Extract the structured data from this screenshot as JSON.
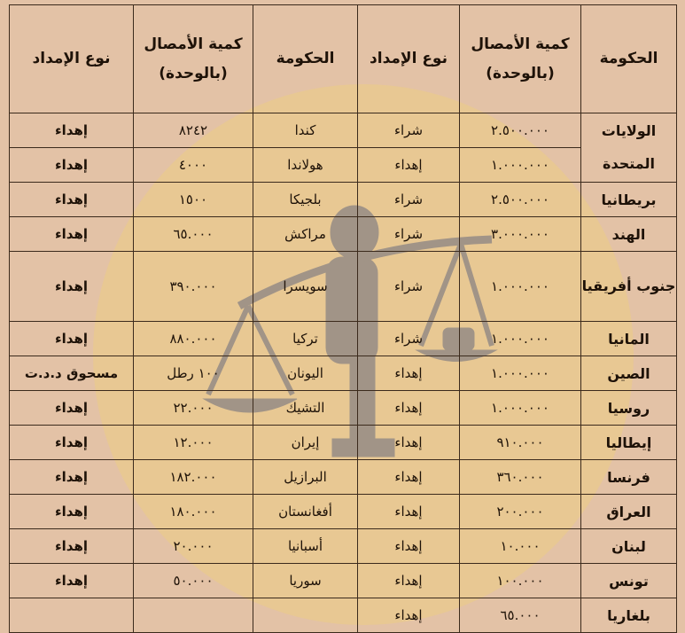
{
  "headers": [
    "الحكومة",
    "كمية الأمصال (بالوحدة)",
    "نوع الإمداد",
    "الحكومة",
    "كمية الأمصال (بالوحدة)",
    "نوع الإمداد"
  ],
  "colors": {
    "background": "#e3c2a6",
    "watermark_circle": "#e9c98c",
    "watermark_figure": "#9a8f86",
    "border": "#3b2a1c"
  },
  "rows": [
    {
      "right": {
        "gov": "الولايات المتحدة",
        "qty": "٢.٥٠٠.٠٠٠",
        "type": "شراء"
      },
      "left": {
        "gov": "كندا",
        "qty": "٨٢٤٢",
        "type": "إهداء"
      }
    },
    {
      "right": {
        "gov": null,
        "qty": "١.٠٠٠.٠٠٠",
        "type": "إهداء"
      },
      "left": {
        "gov": "هولاندا",
        "qty": "٤٠٠٠",
        "type": "إهداء"
      }
    },
    {
      "right": {
        "gov": "بريطانيا",
        "qty": "٢.٥٠٠.٠٠٠",
        "type": "شراء"
      },
      "left": {
        "gov": "بلجيكا",
        "qty": "١٥٠٠",
        "type": "إهداء"
      }
    },
    {
      "right": {
        "gov": "الهند",
        "qty": "٣.٠٠٠.٠٠٠",
        "type": "شراء"
      },
      "left": {
        "gov": "مراكش",
        "qty": "٦٥.٠٠٠",
        "type": "إهداء"
      }
    },
    {
      "right": {
        "gov": "جنوب أفريقيا",
        "qty": "١.٠٠٠.٠٠٠",
        "type": "شراء"
      },
      "left": {
        "gov": "سويسرا",
        "qty": "٣٩٠.٠٠٠",
        "type": "إهداء"
      },
      "tall": true
    },
    {
      "right": {
        "gov": "المانيا",
        "qty": "١.٠٠٠.٠٠٠",
        "type": "شراء"
      },
      "left": {
        "gov": "تركيا",
        "qty": "٨٨٠.٠٠٠",
        "type": "إهداء"
      }
    },
    {
      "right": {
        "gov": "الصين",
        "qty": "١.٠٠٠.٠٠٠",
        "type": "إهداء"
      },
      "left": {
        "gov": "اليونان",
        "qty": "١٠٠ رطل",
        "type": "مسحوق د.د.ت"
      }
    },
    {
      "right": {
        "gov": "روسيا",
        "qty": "١.٠٠٠.٠٠٠",
        "type": "إهداء"
      },
      "left": {
        "gov": "التشيك",
        "qty": "٢٢.٠٠٠",
        "type": "إهداء"
      }
    },
    {
      "right": {
        "gov": "إيطاليا",
        "qty": "٩١٠.٠٠٠",
        "type": "إهداء"
      },
      "left": {
        "gov": "إيران",
        "qty": "١٢.٠٠٠",
        "type": "إهداء"
      }
    },
    {
      "right": {
        "gov": "فرنسا",
        "qty": "٣٦٠.٠٠٠",
        "type": "إهداء"
      },
      "left": {
        "gov": "البرازيل",
        "qty": "١٨٢.٠٠٠",
        "type": "إهداء"
      }
    },
    {
      "right": {
        "gov": "العراق",
        "qty": "٢٠٠.٠٠٠",
        "type": "إهداء"
      },
      "left": {
        "gov": "أفغانستان",
        "qty": "١٨٠.٠٠٠",
        "type": "إهداء"
      }
    },
    {
      "right": {
        "gov": "لبنان",
        "qty": "١٠.٠٠٠",
        "type": "إهداء"
      },
      "left": {
        "gov": "أسبانيا",
        "qty": "٢٠.٠٠٠",
        "type": "إهداء"
      }
    },
    {
      "right": {
        "gov": "تونس",
        "qty": "١٠٠.٠٠٠",
        "type": "إهداء"
      },
      "left": {
        "gov": "سوريا",
        "qty": "٥٠.٠٠٠",
        "type": "إهداء"
      }
    },
    {
      "right": {
        "gov": "بلغاريا",
        "qty": "٦٥.٠٠٠",
        "type": "إهداء"
      },
      "left": {
        "gov": "",
        "qty": "",
        "type": ""
      }
    }
  ]
}
